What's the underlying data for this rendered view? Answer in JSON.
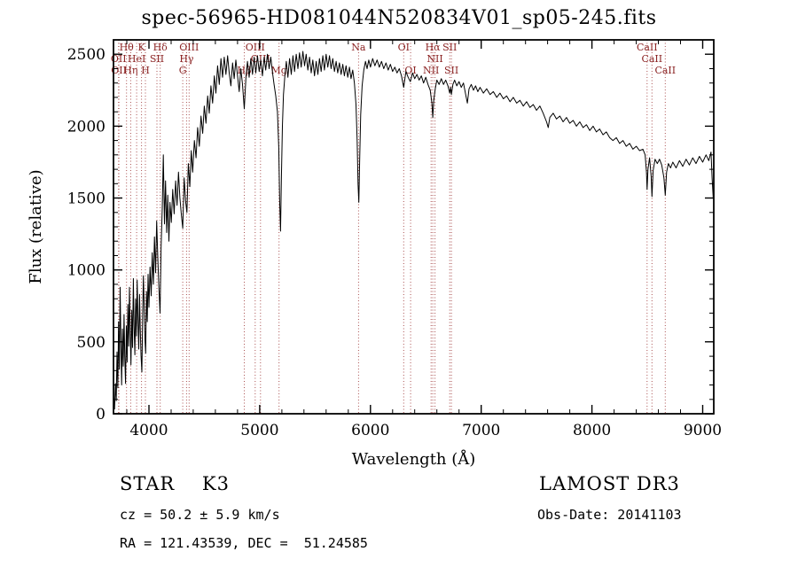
{
  "annotations": {
    "object_class": "STAR    K3",
    "survey": "LAMOST DR3",
    "cz": "cz = 50.2 ± 5.9 km/s",
    "obs_date": "Obs-Date: 20141103",
    "radec": "RA = 121.43539, DEC =  51.24585"
  },
  "chart_data": {
    "type": "line",
    "title": "spec-56965-HD081044N520834V01_sp05-245.fits",
    "xlabel": "Wavelength (Å)",
    "ylabel": "Flux (relative)",
    "xlim": [
      3680,
      9100
    ],
    "ylim": [
      0,
      2600
    ],
    "x_ticks": [
      4000,
      5000,
      6000,
      7000,
      8000,
      9000
    ],
    "y_ticks": [
      0,
      500,
      1000,
      1500,
      2000,
      2500
    ],
    "x_minor_step": 200,
    "y_minor_step": 100,
    "grid": false,
    "legend": null,
    "line_color": "#000000",
    "marker_line_color": "#aa5050",
    "marker_label_color": "#8b2323",
    "spectral_lines": [
      {
        "label": "OII",
        "wavelength": 3726,
        "row": 2
      },
      {
        "label": "OII",
        "wavelength": 3729,
        "row": 3
      },
      {
        "label": "Hθ",
        "wavelength": 3798,
        "row": 1
      },
      {
        "label": "Hη",
        "wavelength": 3835,
        "row": 3
      },
      {
        "label": "HeI",
        "wavelength": 3889,
        "row": 2
      },
      {
        "label": "K",
        "wavelength": 3933,
        "row": 1
      },
      {
        "label": "H",
        "wavelength": 3968,
        "row": 3
      },
      {
        "label": "SII",
        "wavelength": 4072,
        "row": 2
      },
      {
        "label": "Hδ",
        "wavelength": 4102,
        "row": 1
      },
      {
        "label": "G",
        "wavelength": 4305,
        "row": 3
      },
      {
        "label": "Hγ",
        "wavelength": 4340,
        "row": 2
      },
      {
        "label": "OIII",
        "wavelength": 4363,
        "row": 1
      },
      {
        "label": "Hβ",
        "wavelength": 4861,
        "row": 3
      },
      {
        "label": "OIII",
        "wavelength": 4959,
        "row": 1
      },
      {
        "label": "OIII",
        "wavelength": 5007,
        "row": 2
      },
      {
        "label": "Mg",
        "wavelength": 5175,
        "row": 3
      },
      {
        "label": "Na",
        "wavelength": 5893,
        "row": 1
      },
      {
        "label": "OI",
        "wavelength": 6300,
        "row": 1
      },
      {
        "label": "OI",
        "wavelength": 6363,
        "row": 3
      },
      {
        "label": "NII",
        "wavelength": 6548,
        "row": 3
      },
      {
        "label": "Hα",
        "wavelength": 6563,
        "row": 1
      },
      {
        "label": "NII",
        "wavelength": 6583,
        "row": 2
      },
      {
        "label": "SII",
        "wavelength": 6716,
        "row": 1
      },
      {
        "label": "SII",
        "wavelength": 6731,
        "row": 3
      },
      {
        "label": "CaII",
        "wavelength": 8498,
        "row": 1
      },
      {
        "label": "CaII",
        "wavelength": 8542,
        "row": 2
      },
      {
        "label": "CaII",
        "wavelength": 8662,
        "row": 3
      }
    ],
    "series": [
      [
        3690,
        30
      ],
      [
        3698,
        210
      ],
      [
        3705,
        90
      ],
      [
        3712,
        430
      ],
      [
        3719,
        180
      ],
      [
        3726,
        640
      ],
      [
        3733,
        310
      ],
      [
        3740,
        880
      ],
      [
        3747,
        470
      ],
      [
        3754,
        200
      ],
      [
        3761,
        590
      ],
      [
        3768,
        330
      ],
      [
        3775,
        690
      ],
      [
        3782,
        400
      ],
      [
        3789,
        210
      ],
      [
        3796,
        610
      ],
      [
        3803,
        360
      ],
      [
        3810,
        760
      ],
      [
        3817,
        470
      ],
      [
        3824,
        880
      ],
      [
        3831,
        560
      ],
      [
        3838,
        340
      ],
      [
        3845,
        720
      ],
      [
        3852,
        460
      ],
      [
        3859,
        940
      ],
      [
        3866,
        620
      ],
      [
        3873,
        410
      ],
      [
        3880,
        800
      ],
      [
        3887,
        540
      ],
      [
        3894,
        930
      ],
      [
        3901,
        660
      ],
      [
        3908,
        450
      ],
      [
        3915,
        830
      ],
      [
        3922,
        590
      ],
      [
        3929,
        400
      ],
      [
        3936,
        290
      ],
      [
        3943,
        680
      ],
      [
        3950,
        960
      ],
      [
        3957,
        750
      ],
      [
        3964,
        520
      ],
      [
        3971,
        420
      ],
      [
        3978,
        850
      ],
      [
        3985,
        640
      ],
      [
        3992,
        970
      ],
      [
        4000,
        740
      ],
      [
        4010,
        1020
      ],
      [
        4020,
        820
      ],
      [
        4030,
        1120
      ],
      [
        4040,
        900
      ],
      [
        4050,
        1230
      ],
      [
        4060,
        980
      ],
      [
        4070,
        1340
      ],
      [
        4080,
        1080
      ],
      [
        4090,
        880
      ],
      [
        4100,
        700
      ],
      [
        4110,
        1160
      ],
      [
        4120,
        1430
      ],
      [
        4130,
        1800
      ],
      [
        4140,
        1320
      ],
      [
        4150,
        1620
      ],
      [
        4160,
        1260
      ],
      [
        4170,
        1520
      ],
      [
        4180,
        1200
      ],
      [
        4190,
        1470
      ],
      [
        4202,
        1330
      ],
      [
        4215,
        1560
      ],
      [
        4228,
        1390
      ],
      [
        4241,
        1620
      ],
      [
        4254,
        1450
      ],
      [
        4267,
        1680
      ],
      [
        4280,
        1500
      ],
      [
        4293,
        1380
      ],
      [
        4305,
        1290
      ],
      [
        4318,
        1640
      ],
      [
        4331,
        1480
      ],
      [
        4343,
        1400
      ],
      [
        4356,
        1740
      ],
      [
        4369,
        1580
      ],
      [
        4382,
        1830
      ],
      [
        4395,
        1680
      ],
      [
        4410,
        1900
      ],
      [
        4425,
        1780
      ],
      [
        4440,
        1990
      ],
      [
        4455,
        1860
      ],
      [
        4470,
        2070
      ],
      [
        4485,
        1950
      ],
      [
        4500,
        2140
      ],
      [
        4515,
        2020
      ],
      [
        4530,
        2210
      ],
      [
        4545,
        2090
      ],
      [
        4560,
        2280
      ],
      [
        4575,
        2160
      ],
      [
        4590,
        2350
      ],
      [
        4605,
        2230
      ],
      [
        4620,
        2420
      ],
      [
        4635,
        2290
      ],
      [
        4650,
        2470
      ],
      [
        4665,
        2340
      ],
      [
        4680,
        2480
      ],
      [
        4695,
        2360
      ],
      [
        4710,
        2490
      ],
      [
        4725,
        2370
      ],
      [
        4740,
        2280
      ],
      [
        4755,
        2440
      ],
      [
        4770,
        2330
      ],
      [
        4785,
        2460
      ],
      [
        4800,
        2350
      ],
      [
        4815,
        2240
      ],
      [
        4830,
        2400
      ],
      [
        4845,
        2290
      ],
      [
        4861,
        2120
      ],
      [
        4875,
        2330
      ],
      [
        4890,
        2450
      ],
      [
        4905,
        2340
      ],
      [
        4920,
        2470
      ],
      [
        4935,
        2360
      ],
      [
        4950,
        2480
      ],
      [
        4965,
        2370
      ],
      [
        4980,
        2490
      ],
      [
        4995,
        2380
      ],
      [
        5010,
        2460
      ],
      [
        5025,
        2350
      ],
      [
        5040,
        2480
      ],
      [
        5055,
        2390
      ],
      [
        5070,
        2500
      ],
      [
        5085,
        2400
      ],
      [
        5100,
        2480
      ],
      [
        5115,
        2380
      ],
      [
        5130,
        2290
      ],
      [
        5145,
        2210
      ],
      [
        5160,
        2100
      ],
      [
        5172,
        1850
      ],
      [
        5180,
        1480
      ],
      [
        5188,
        1270
      ],
      [
        5196,
        1650
      ],
      [
        5205,
        2000
      ],
      [
        5215,
        2220
      ],
      [
        5228,
        2360
      ],
      [
        5240,
        2450
      ],
      [
        5255,
        2340
      ],
      [
        5270,
        2470
      ],
      [
        5285,
        2360
      ],
      [
        5300,
        2490
      ],
      [
        5315,
        2380
      ],
      [
        5330,
        2500
      ],
      [
        5345,
        2400
      ],
      [
        5360,
        2510
      ],
      [
        5375,
        2410
      ],
      [
        5390,
        2520
      ],
      [
        5405,
        2420
      ],
      [
        5420,
        2500
      ],
      [
        5435,
        2390
      ],
      [
        5450,
        2480
      ],
      [
        5465,
        2370
      ],
      [
        5480,
        2460
      ],
      [
        5495,
        2350
      ],
      [
        5510,
        2450
      ],
      [
        5525,
        2360
      ],
      [
        5540,
        2470
      ],
      [
        5555,
        2380
      ],
      [
        5570,
        2490
      ],
      [
        5585,
        2390
      ],
      [
        5600,
        2500
      ],
      [
        5615,
        2410
      ],
      [
        5630,
        2490
      ],
      [
        5645,
        2400
      ],
      [
        5660,
        2470
      ],
      [
        5675,
        2380
      ],
      [
        5690,
        2450
      ],
      [
        5705,
        2370
      ],
      [
        5720,
        2440
      ],
      [
        5735,
        2360
      ],
      [
        5750,
        2430
      ],
      [
        5765,
        2350
      ],
      [
        5780,
        2420
      ],
      [
        5795,
        2340
      ],
      [
        5810,
        2410
      ],
      [
        5825,
        2330
      ],
      [
        5840,
        2390
      ],
      [
        5855,
        2300
      ],
      [
        5870,
        2150
      ],
      [
        5880,
        1900
      ],
      [
        5888,
        1600
      ],
      [
        5895,
        1470
      ],
      [
        5903,
        1780
      ],
      [
        5912,
        2080
      ],
      [
        5925,
        2280
      ],
      [
        5940,
        2390
      ],
      [
        5955,
        2450
      ],
      [
        5970,
        2400
      ],
      [
        5985,
        2460
      ],
      [
        6000,
        2410
      ],
      [
        6020,
        2470
      ],
      [
        6040,
        2420
      ],
      [
        6060,
        2460
      ],
      [
        6080,
        2410
      ],
      [
        6100,
        2450
      ],
      [
        6120,
        2400
      ],
      [
        6140,
        2440
      ],
      [
        6160,
        2390
      ],
      [
        6180,
        2430
      ],
      [
        6200,
        2380
      ],
      [
        6220,
        2410
      ],
      [
        6240,
        2370
      ],
      [
        6260,
        2400
      ],
      [
        6280,
        2350
      ],
      [
        6300,
        2270
      ],
      [
        6320,
        2380
      ],
      [
        6340,
        2340
      ],
      [
        6360,
        2310
      ],
      [
        6380,
        2370
      ],
      [
        6400,
        2330
      ],
      [
        6420,
        2360
      ],
      [
        6440,
        2320
      ],
      [
        6460,
        2350
      ],
      [
        6480,
        2300
      ],
      [
        6500,
        2340
      ],
      [
        6520,
        2290
      ],
      [
        6540,
        2250
      ],
      [
        6555,
        2160
      ],
      [
        6563,
        2060
      ],
      [
        6572,
        2180
      ],
      [
        6585,
        2260
      ],
      [
        6600,
        2320
      ],
      [
        6620,
        2290
      ],
      [
        6640,
        2330
      ],
      [
        6660,
        2290
      ],
      [
        6680,
        2320
      ],
      [
        6700,
        2280
      ],
      [
        6716,
        2230
      ],
      [
        6724,
        2270
      ],
      [
        6731,
        2220
      ],
      [
        6745,
        2290
      ],
      [
        6760,
        2320
      ],
      [
        6780,
        2280
      ],
      [
        6800,
        2310
      ],
      [
        6820,
        2270
      ],
      [
        6840,
        2300
      ],
      [
        6860,
        2220
      ],
      [
        6875,
        2160
      ],
      [
        6890,
        2260
      ],
      [
        6910,
        2290
      ],
      [
        6930,
        2250
      ],
      [
        6950,
        2280
      ],
      [
        6970,
        2240
      ],
      [
        6990,
        2270
      ],
      [
        7020,
        2230
      ],
      [
        7050,
        2260
      ],
      [
        7080,
        2220
      ],
      [
        7110,
        2240
      ],
      [
        7140,
        2200
      ],
      [
        7170,
        2230
      ],
      [
        7200,
        2190
      ],
      [
        7230,
        2210
      ],
      [
        7260,
        2170
      ],
      [
        7290,
        2200
      ],
      [
        7320,
        2160
      ],
      [
        7350,
        2180
      ],
      [
        7380,
        2140
      ],
      [
        7410,
        2170
      ],
      [
        7440,
        2130
      ],
      [
        7470,
        2150
      ],
      [
        7500,
        2110
      ],
      [
        7530,
        2140
      ],
      [
        7560,
        2090
      ],
      [
        7590,
        2030
      ],
      [
        7605,
        1990
      ],
      [
        7620,
        2060
      ],
      [
        7650,
        2090
      ],
      [
        7680,
        2050
      ],
      [
        7710,
        2070
      ],
      [
        7740,
        2030
      ],
      [
        7770,
        2060
      ],
      [
        7800,
        2020
      ],
      [
        7830,
        2040
      ],
      [
        7860,
        2000
      ],
      [
        7890,
        2030
      ],
      [
        7920,
        1990
      ],
      [
        7950,
        2010
      ],
      [
        7980,
        1970
      ],
      [
        8010,
        2000
      ],
      [
        8040,
        1960
      ],
      [
        8070,
        1980
      ],
      [
        8100,
        1940
      ],
      [
        8130,
        1960
      ],
      [
        8160,
        1920
      ],
      [
        8190,
        1900
      ],
      [
        8220,
        1920
      ],
      [
        8250,
        1880
      ],
      [
        8280,
        1900
      ],
      [
        8310,
        1860
      ],
      [
        8340,
        1880
      ],
      [
        8370,
        1840
      ],
      [
        8400,
        1860
      ],
      [
        8430,
        1830
      ],
      [
        8460,
        1840
      ],
      [
        8480,
        1800
      ],
      [
        8492,
        1680
      ],
      [
        8498,
        1560
      ],
      [
        8506,
        1700
      ],
      [
        8520,
        1780
      ],
      [
        8535,
        1650
      ],
      [
        8542,
        1510
      ],
      [
        8552,
        1690
      ],
      [
        8570,
        1770
      ],
      [
        8590,
        1740
      ],
      [
        8610,
        1770
      ],
      [
        8630,
        1730
      ],
      [
        8650,
        1640
      ],
      [
        8662,
        1520
      ],
      [
        8674,
        1680
      ],
      [
        8690,
        1740
      ],
      [
        8710,
        1710
      ],
      [
        8730,
        1750
      ],
      [
        8760,
        1710
      ],
      [
        8790,
        1760
      ],
      [
        8820,
        1720
      ],
      [
        8850,
        1770
      ],
      [
        8880,
        1730
      ],
      [
        8910,
        1780
      ],
      [
        8940,
        1740
      ],
      [
        8970,
        1790
      ],
      [
        9000,
        1750
      ],
      [
        9030,
        1800
      ],
      [
        9055,
        1760
      ],
      [
        9075,
        1820
      ],
      [
        9085,
        1640
      ],
      [
        9095,
        1500
      ]
    ]
  }
}
